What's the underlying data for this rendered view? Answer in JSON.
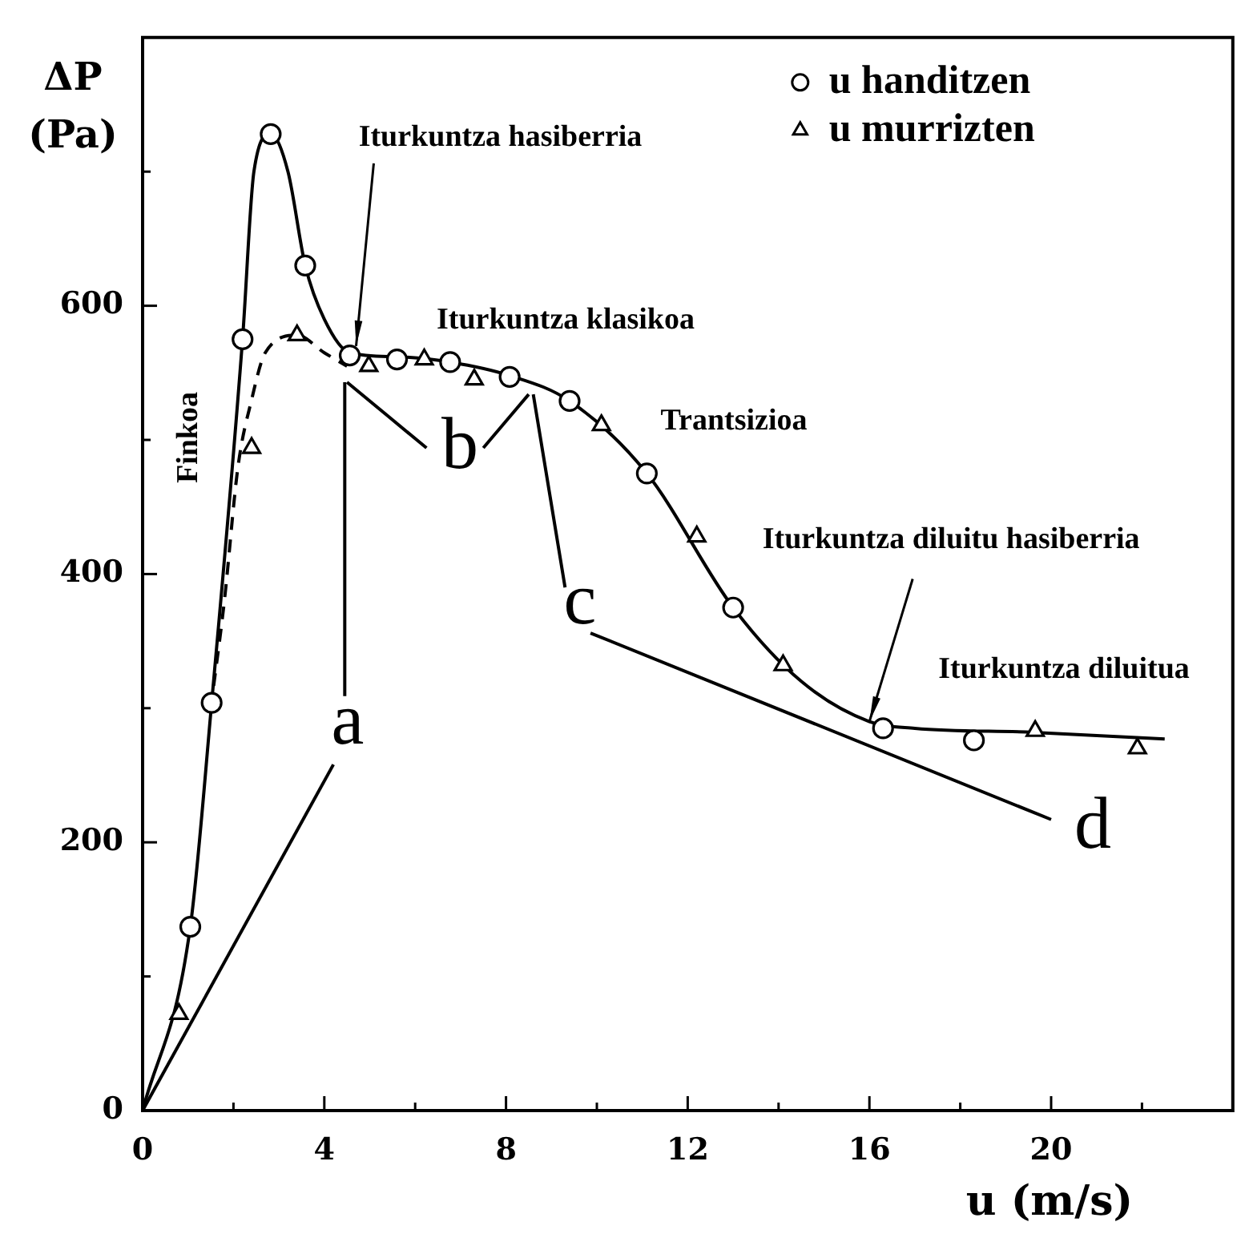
{
  "chart_data": {
    "type": "scatter",
    "xlabel": "u (m/s)",
    "ylabel": "ΔP (Pa)",
    "xlim": [
      0,
      24
    ],
    "ylim": [
      0,
      800
    ],
    "xticks": [
      0,
      {
        "value": 2,
        "label": null
      },
      4,
      {
        "value": 6,
        "label": null
      },
      8,
      {
        "value": 10,
        "label": null
      },
      12,
      {
        "value": 14,
        "label": null
      },
      16,
      {
        "value": 18,
        "label": null
      },
      20,
      {
        "value": 22,
        "label": null
      }
    ],
    "yticks": [
      0,
      {
        "value": 100,
        "label": null
      },
      200,
      {
        "value": 300,
        "label": null
      },
      400,
      {
        "value": 500,
        "label": null
      },
      600,
      {
        "value": 700,
        "label": null
      }
    ],
    "grid": false,
    "legend": "top right",
    "series": [
      {
        "name": "u handitzen",
        "type": "scatter",
        "marker": "circle",
        "color": "#000000",
        "x": [
          1.05,
          1.52,
          2.2,
          2.82,
          3.58,
          4.56,
          5.6,
          6.77,
          8.08,
          9.4,
          11.1,
          13.0,
          16.3,
          18.3
        ],
        "values": [
          137,
          304,
          575,
          728,
          630,
          563,
          560,
          558,
          547,
          529,
          475,
          375,
          285,
          276
        ]
      },
      {
        "name": "u murrizten",
        "type": "scatter",
        "marker": "triangle",
        "color": "#000000",
        "x": [
          0.8,
          2.4,
          3.4,
          4.98,
          6.2,
          7.3,
          10.1,
          12.2,
          14.1,
          19.65,
          21.9
        ],
        "values": [
          72,
          494,
          578,
          555,
          560,
          545,
          511,
          428,
          332,
          283,
          270
        ]
      },
      {
        "type": "line",
        "marker": "none",
        "line_style": "solid",
        "color": "#000000",
        "x": [
          0,
          1.05,
          1.52,
          2.2,
          2.45,
          2.82,
          3.2,
          3.58,
          4.0,
          4.56,
          5.6,
          6.77,
          8.08,
          9.4,
          11.1,
          13.0,
          14.5,
          16,
          17,
          19.6,
          22.5
        ],
        "values": [
          0,
          137,
          304,
          575,
          700,
          728,
          700,
          630,
          590,
          565,
          562,
          558,
          548,
          529,
          475,
          375,
          320,
          290,
          285,
          282,
          277
        ]
      },
      {
        "type": "line",
        "marker": "none",
        "line_style": "dashed",
        "color": "#000000",
        "x": [
          1.5,
          1.8,
          2.1,
          2.4,
          2.7,
          3.4,
          4.0,
          4.5
        ],
        "values": [
          300,
          380,
          480,
          530,
          565,
          578,
          565,
          555
        ]
      },
      {
        "type": "line",
        "marker": "none",
        "line_style": "solid",
        "color": "#000000",
        "x": [
          0,
          4.2
        ],
        "values": [
          0,
          258
        ]
      },
      {
        "type": "line",
        "marker": "none",
        "line_style": "solid",
        "color": "#000000",
        "x": [
          4.45,
          4.45
        ],
        "values": [
          309,
          543
        ]
      },
      {
        "type": "line",
        "marker": "none",
        "line_style": "solid",
        "color": "#000000",
        "x": [
          4.5,
          6.25
        ],
        "values": [
          543,
          494
        ]
      },
      {
        "type": "line",
        "marker": "none",
        "line_style": "solid",
        "color": "#000000",
        "x": [
          7.5,
          8.5
        ],
        "values": [
          494,
          534
        ]
      },
      {
        "type": "line",
        "marker": "none",
        "line_style": "solid",
        "color": "#000000",
        "x": [
          9.3,
          8.6
        ],
        "values": [
          390,
          534
        ]
      },
      {
        "type": "line",
        "marker": "none",
        "line_style": "solid",
        "color": "#000000",
        "x": [
          9.86,
          20.0
        ],
        "values": [
          356,
          217
        ]
      }
    ],
    "annotations": [
      {
        "text": "Iturkuntza hasiberria",
        "x": 4.7,
        "y": 570
      },
      "Iturkuntza klasikoa",
      "Trantsizioa",
      {
        "text": "Iturkuntza diluitu hasiberria",
        "x": 16,
        "y": 290
      },
      "Iturkuntza diluitua",
      "Finkoa",
      "a",
      "b",
      "c",
      "d"
    ]
  }
}
